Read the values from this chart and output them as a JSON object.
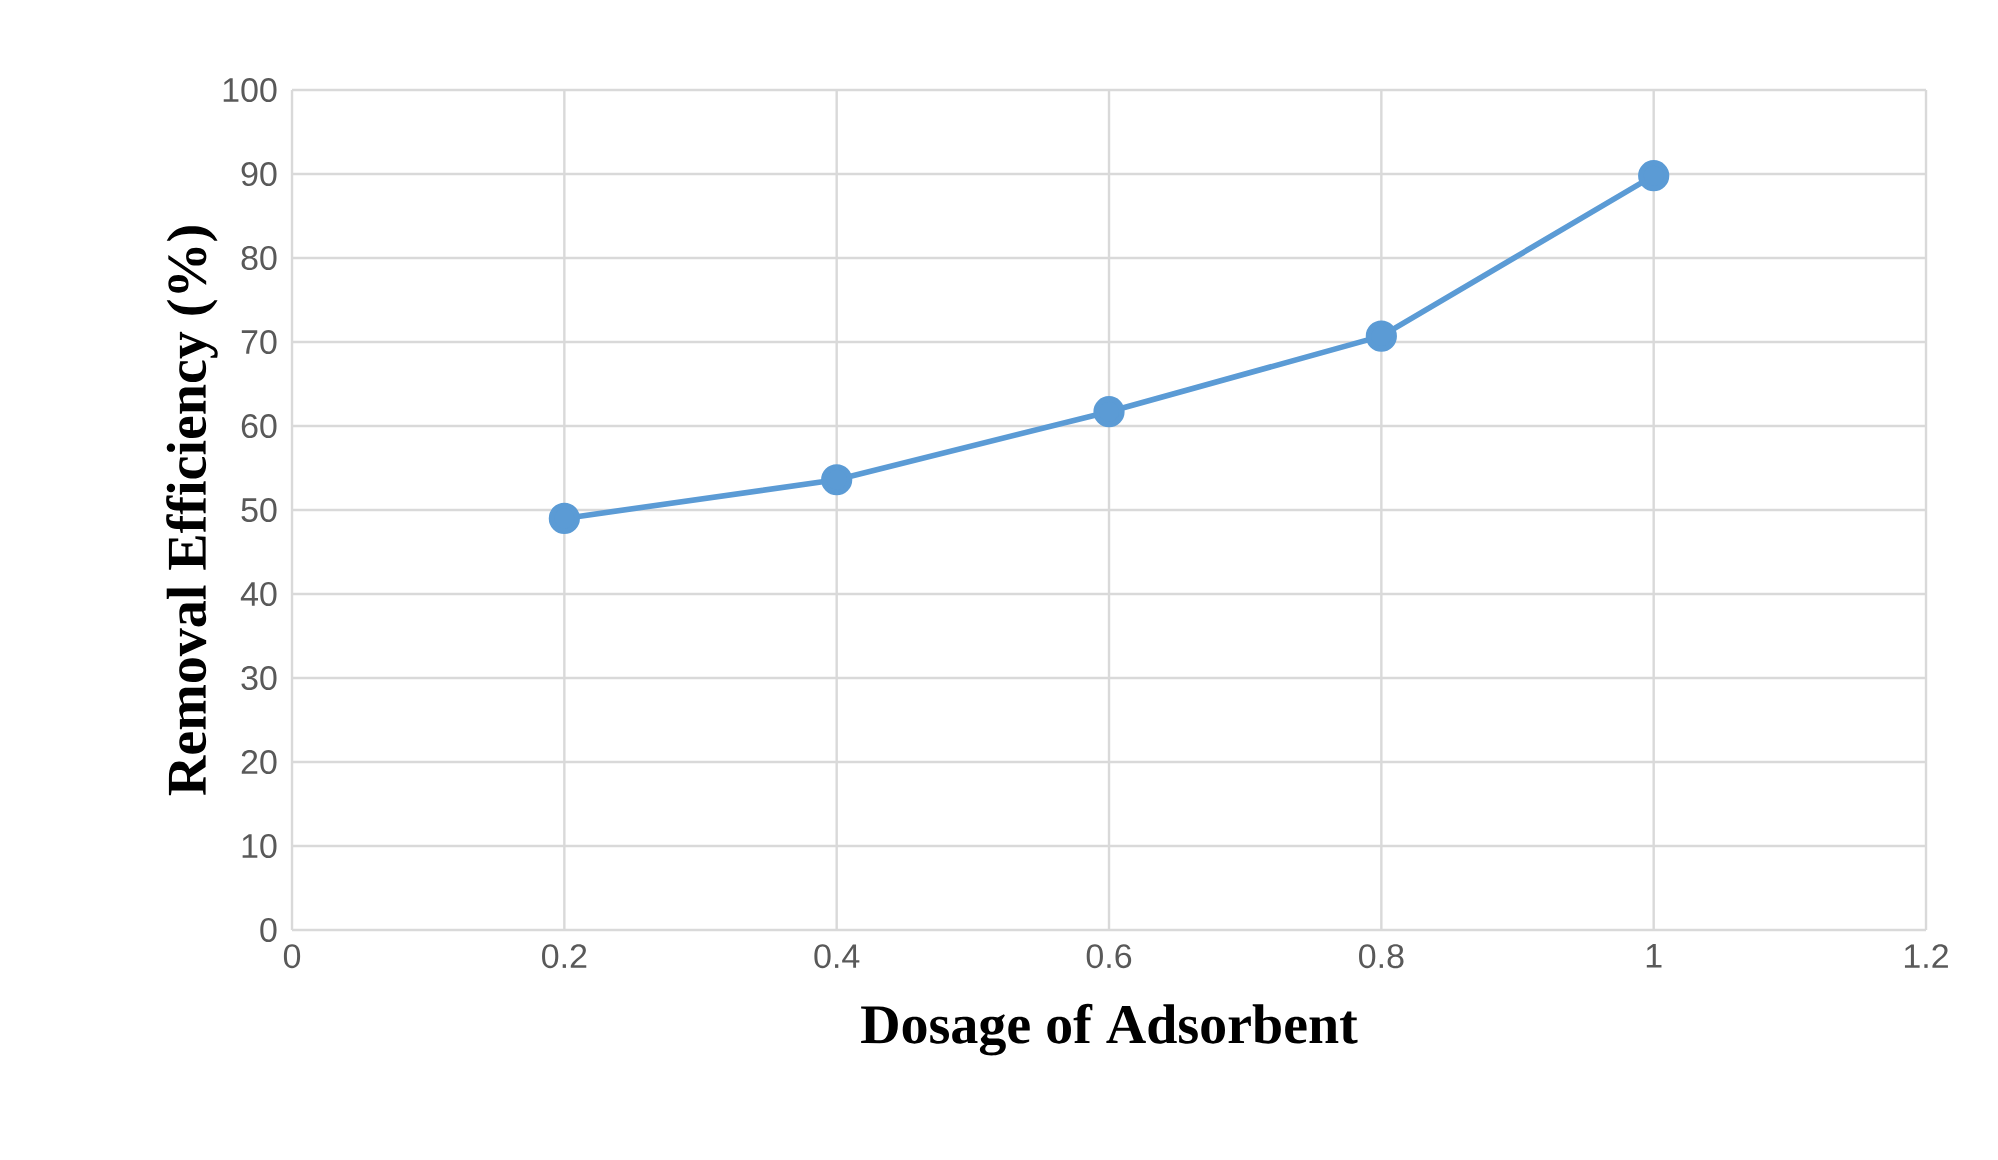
{
  "chart_data": {
    "type": "line",
    "xlabel": "Dosage of Adsorbent",
    "ylabel": "Removal Efficiency (%)",
    "x": [
      0.2,
      0.4,
      0.6,
      0.8,
      1
    ],
    "series": [
      {
        "color": "#5b9bd5",
        "values": [
          49.0,
          53.6,
          61.7,
          70.7,
          89.8
        ]
      }
    ],
    "xlim": [
      0,
      1.2
    ],
    "xticks": [
      0,
      0.2,
      0.4,
      0.6,
      0.8,
      1,
      1.2
    ],
    "ylim": [
      0,
      100
    ],
    "yticks": [
      0,
      10,
      20,
      30,
      40,
      50,
      60,
      70,
      80,
      90,
      100
    ],
    "grid": true,
    "marker": "circle",
    "line_style": "solid"
  }
}
